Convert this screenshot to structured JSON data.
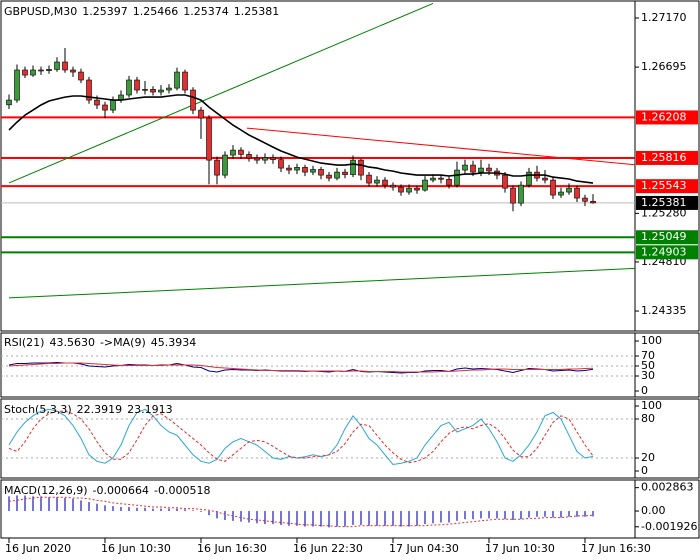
{
  "chart_data": [
    {
      "type": "candlestick",
      "title": "GBPUSD,M30",
      "categories": [
        "16 Jun 2020",
        null,
        null,
        null,
        null,
        null,
        null,
        null,
        null,
        null,
        null,
        null,
        "16 Jun 10:30",
        null,
        null,
        null,
        null,
        null,
        null,
        null,
        null,
        null,
        null,
        null,
        "16 Jun 16:30",
        null,
        null,
        null,
        null,
        null,
        null,
        null,
        null,
        null,
        null,
        null,
        "16 Jun 22:30",
        null,
        null,
        null,
        null,
        null,
        null,
        null,
        null,
        null,
        null,
        null,
        "17 Jun 04:30",
        null,
        null,
        null,
        null,
        null,
        null,
        null,
        null,
        null,
        null,
        null,
        "17 Jun 10:30",
        null,
        null,
        null,
        null,
        null,
        null,
        null,
        null,
        null,
        null,
        null,
        "17 Jun 16:30",
        null
      ],
      "open": [
        1.2633,
        1.26376,
        1.26667,
        1.26618,
        1.26667,
        1.2666,
        1.26672,
        1.26744,
        1.26667,
        1.26647,
        1.2657,
        1.26376,
        1.26328,
        1.26279,
        1.26376,
        1.26425,
        1.2657,
        1.26473,
        1.2648,
        1.26454,
        1.26473,
        1.26492,
        1.26647,
        1.26473,
        1.26279,
        1.26202,
        1.25795,
        1.2565,
        1.25844,
        1.25892,
        1.2585,
        1.25815,
        1.25795,
        1.2582,
        1.258,
        1.25718,
        1.25699,
        1.25725,
        1.25679,
        1.25705,
        1.2565,
        1.25621,
        1.25679,
        1.25655,
        1.25795,
        1.2565,
        1.25573,
        1.25602,
        1.25553,
        1.25534,
        1.25486,
        1.25524,
        1.25505,
        1.25602,
        1.25621,
        1.2561,
        1.25553,
        1.25699,
        1.25747,
        1.25679,
        1.25718,
        1.2569,
        1.2565,
        1.25524,
        1.25379,
        1.25553,
        1.25679,
        1.25621,
        1.25602,
        1.25457,
        1.25486,
        1.25524,
        1.25428,
        1.25397
      ],
      "high": [
        1.2643,
        1.2672,
        1.267,
        1.2671,
        1.267,
        1.2671,
        1.2679,
        1.2688,
        1.267,
        1.2668,
        1.266,
        1.2642,
        1.2636,
        1.2641,
        1.2647,
        1.2661,
        1.266,
        1.2656,
        1.2651,
        1.2652,
        1.2653,
        1.2669,
        1.2667,
        1.265,
        1.2631,
        1.2623,
        1.2583,
        1.2588,
        1.2594,
        1.2592,
        1.2588,
        1.2585,
        1.2586,
        1.2585,
        1.2583,
        1.2575,
        1.2576,
        1.2575,
        1.2574,
        1.2573,
        1.2568,
        1.2572,
        1.2571,
        1.2584,
        1.2581,
        1.2568,
        1.2564,
        1.2563,
        1.2558,
        1.2556,
        1.2556,
        1.2555,
        1.2564,
        1.2566,
        1.2565,
        1.2564,
        1.2578,
        1.258,
        1.2579,
        1.258,
        1.2576,
        1.2572,
        1.2568,
        1.2555,
        1.2559,
        1.2572,
        1.2574,
        1.257,
        1.2563,
        1.2553,
        1.2557,
        1.2555,
        1.2546,
        1.25466
      ],
      "low": [
        1.2629,
        1.2635,
        1.2659,
        1.266,
        1.2662,
        1.2663,
        1.2665,
        1.2664,
        1.266,
        1.2654,
        1.2634,
        1.2629,
        1.262,
        1.2625,
        1.2635,
        1.264,
        1.2644,
        1.2643,
        1.2642,
        1.2642,
        1.2644,
        1.2647,
        1.2644,
        1.2624,
        1.26,
        1.2556,
        1.2556,
        1.2562,
        1.2581,
        1.2581,
        1.2578,
        1.2576,
        1.2576,
        1.2576,
        1.2568,
        1.2566,
        1.2566,
        1.2564,
        1.2565,
        1.2561,
        1.2559,
        1.256,
        1.2562,
        1.2563,
        1.256,
        1.2554,
        1.2554,
        1.2552,
        1.255,
        1.2545,
        1.2546,
        1.2547,
        1.2549,
        1.2558,
        1.2557,
        1.2552,
        1.2553,
        1.2566,
        1.2564,
        1.2564,
        1.2565,
        1.2561,
        1.2548,
        1.253,
        1.2535,
        1.2553,
        1.2559,
        1.2557,
        1.2542,
        1.2543,
        1.2546,
        1.2539,
        1.2535,
        1.25374
      ],
      "close": [
        1.26376,
        1.26667,
        1.26618,
        1.26667,
        1.2666,
        1.26672,
        1.26744,
        1.26667,
        1.26647,
        1.2657,
        1.26376,
        1.26328,
        1.26279,
        1.26376,
        1.26425,
        1.2657,
        1.26473,
        1.2648,
        1.26454,
        1.26473,
        1.26492,
        1.26647,
        1.26473,
        1.26279,
        1.26202,
        1.25795,
        1.2565,
        1.25844,
        1.25892,
        1.2585,
        1.25815,
        1.25795,
        1.2582,
        1.258,
        1.25718,
        1.25699,
        1.25725,
        1.25679,
        1.25705,
        1.2565,
        1.25621,
        1.25679,
        1.25655,
        1.25795,
        1.2565,
        1.25573,
        1.25602,
        1.25553,
        1.25534,
        1.25486,
        1.25524,
        1.25505,
        1.25602,
        1.25621,
        1.2561,
        1.25553,
        1.25699,
        1.25747,
        1.25679,
        1.25718,
        1.2569,
        1.2565,
        1.25524,
        1.25379,
        1.25553,
        1.25679,
        1.25621,
        1.25602,
        1.25457,
        1.25486,
        1.25524,
        1.25428,
        1.25397,
        1.25381
      ],
      "up_color": "#3c9a3c",
      "down_color": "#e03030",
      "ma": {
        "color": "#000000",
        "values": [
          1.26086,
          1.26163,
          1.26231,
          1.26279,
          1.26328,
          1.26367,
          1.26386,
          1.26405,
          1.26415,
          1.26415,
          1.26405,
          1.26396,
          1.26386,
          1.26376,
          1.26376,
          1.26386,
          1.26396,
          1.26405,
          1.26405,
          1.26405,
          1.26415,
          1.26425,
          1.26425,
          1.26405,
          1.26376,
          1.26308,
          1.2625,
          1.26192,
          1.26134,
          1.26086,
          1.26037,
          1.25999,
          1.2596,
          1.25921,
          1.25883,
          1.25854,
          1.25824,
          1.25805,
          1.25786,
          1.25766,
          1.25757,
          1.25747,
          1.25747,
          1.25757,
          1.25747,
          1.25728,
          1.25718,
          1.25699,
          1.25689,
          1.2567,
          1.2566,
          1.2565,
          1.2565,
          1.2565,
          1.2565,
          1.25641,
          1.2565,
          1.2566,
          1.2566,
          1.2567,
          1.2567,
          1.2567,
          1.2566,
          1.25641,
          1.25641,
          1.2565,
          1.2565,
          1.2565,
          1.25631,
          1.25621,
          1.25612,
          1.25592,
          1.25582,
          1.25573
        ]
      },
      "levels": [
        {
          "value": 1.26208,
          "color": "#ff0000"
        },
        {
          "value": 1.25816,
          "color": "#ff0000"
        },
        {
          "value": 1.25543,
          "color": "#ff0000"
        },
        {
          "value": 1.25049,
          "color": "#008000"
        },
        {
          "value": 1.24903,
          "color": "#008000"
        }
      ],
      "trendlines": [
        {
          "x": [
            0,
            53
          ],
          "y": [
            1.25574,
            1.27311
          ],
          "color": "#008000"
        },
        {
          "x": [
            0,
            79
          ],
          "y": [
            1.24462,
            1.2475
          ],
          "color": "#008000"
        },
        {
          "x": [
            29.75,
            78.75
          ],
          "y": [
            1.26105,
            1.25747
          ],
          "color": "#ff0000"
        }
      ],
      "ylim": [
        1.24171,
        1.27315
      ],
      "yticks": [
        {
          "value": 1.2717,
          "label": "1.27170"
        },
        {
          "value": 1.26695,
          "label": "1.26695"
        },
        {
          "value": 1.2528,
          "label": "1.25280"
        },
        {
          "value": 1.2481,
          "label": "1.24810"
        },
        {
          "value": 1.24335,
          "label": "1.24335"
        }
      ]
    },
    {
      "type": "line",
      "title": "RSI(21)",
      "ylim": [
        0,
        100
      ],
      "yticks": [
        0,
        30,
        50,
        70,
        100
      ],
      "grid": true,
      "series": [
        {
          "color": "#00008b",
          "style": "solid",
          "values": [
            52,
            55,
            55,
            56,
            56,
            56,
            57,
            56,
            56,
            54,
            50,
            49,
            48,
            50,
            51,
            53,
            52,
            52,
            51,
            52,
            52,
            55,
            52,
            48,
            47,
            40,
            38,
            42,
            43,
            42,
            42,
            41,
            42,
            41,
            40,
            40,
            40,
            39,
            40,
            39,
            38,
            40,
            39,
            43,
            39,
            38,
            39,
            38,
            37,
            36,
            37,
            37,
            40,
            41,
            41,
            39,
            44,
            46,
            44,
            45,
            44,
            43,
            40,
            37,
            41,
            45,
            44,
            43,
            40,
            41,
            42,
            40,
            41,
            43.563
          ],
          "value_labels": [
            null,
            null,
            null,
            null,
            null,
            null,
            null,
            null,
            null,
            null,
            null,
            null,
            null,
            null,
            null,
            null,
            null,
            null,
            null,
            null,
            null,
            null,
            null,
            null,
            null,
            null,
            null,
            null,
            null,
            null,
            null,
            null,
            null,
            null,
            null,
            null,
            null,
            null,
            null,
            null,
            null,
            null,
            null,
            null,
            null,
            null,
            null,
            null,
            null,
            null,
            null,
            null,
            null,
            null,
            null,
            null,
            null,
            null,
            null,
            null,
            null,
            null,
            null,
            null,
            null,
            null,
            null,
            null,
            null,
            null,
            null,
            null,
            null,
            "43.5630"
          ]
        },
        {
          "name": "->MA(9)",
          "color": "#e03030",
          "style": "solid",
          "values": [
            50,
            51,
            52,
            53,
            54,
            55,
            55,
            56,
            56,
            56,
            55,
            54,
            53,
            52,
            51,
            51,
            51,
            51,
            51,
            51,
            52,
            52,
            52,
            52,
            51,
            49,
            47,
            46,
            45,
            44,
            43,
            42,
            41,
            41,
            41,
            41,
            41,
            40,
            40,
            40,
            40,
            40,
            39,
            40,
            40,
            39,
            39,
            39,
            39,
            38,
            38,
            38,
            38,
            38,
            39,
            39,
            40,
            41,
            42,
            42,
            43,
            44,
            44,
            43,
            43,
            43,
            43,
            43,
            43,
            43,
            44,
            44,
            45,
            45.3934
          ]
        }
      ]
    },
    {
      "type": "line",
      "title": "Stoch(5,3,3)",
      "ylim": [
        0,
        100
      ],
      "yticks": [
        0,
        20,
        80,
        100
      ],
      "grid": true,
      "series": [
        {
          "color": "#2aa7d8",
          "style": "solid",
          "values": [
            40,
            60,
            75,
            85,
            92,
            95,
            92,
            85,
            70,
            50,
            25,
            15,
            12,
            20,
            40,
            70,
            90,
            95,
            85,
            70,
            60,
            55,
            40,
            25,
            15,
            12,
            18,
            35,
            45,
            50,
            45,
            40,
            30,
            20,
            18,
            22,
            20,
            22,
            25,
            22,
            25,
            40,
            65,
            85,
            70,
            50,
            40,
            25,
            10,
            12,
            15,
            20,
            40,
            55,
            70,
            75,
            60,
            65,
            70,
            80,
            65,
            45,
            20,
            15,
            25,
            40,
            60,
            85,
            90,
            80,
            55,
            30,
            20,
            22.3919
          ]
        },
        {
          "color": "#e03030",
          "style": "dashed",
          "values": [
            35,
            30,
            45,
            65,
            80,
            88,
            92,
            92,
            88,
            80,
            65,
            45,
            28,
            18,
            18,
            28,
            48,
            70,
            85,
            88,
            80,
            70,
            60,
            50,
            40,
            28,
            18,
            15,
            25,
            35,
            45,
            47,
            45,
            38,
            30,
            23,
            20,
            20,
            22,
            23,
            25,
            30,
            42,
            60,
            72,
            70,
            55,
            40,
            28,
            18,
            13,
            15,
            20,
            30,
            45,
            58,
            65,
            68,
            65,
            70,
            73,
            65,
            50,
            32,
            22,
            22,
            35,
            55,
            75,
            85,
            80,
            60,
            40,
            23.1913
          ]
        }
      ]
    },
    {
      "type": "bar_line",
      "title": "MACD(12,26,9)",
      "ylim": [
        -0.0033,
        0.0038
      ],
      "yticks": [
        -0.001926,
        {
          "value": 0,
          "label": "0.00"
        },
        0.002863
      ],
      "series": [
        {
          "color": "#1a1aa6",
          "style": "bar",
          "values": [
            0.0018,
            0.0019,
            0.0019,
            0.0018,
            0.0018,
            0.0017,
            0.0017,
            0.0016,
            0.0015,
            0.0013,
            0.0011,
            0.0009,
            0.0007,
            0.0006,
            0.0005,
            0.0005,
            0.0004,
            0.0004,
            0.0003,
            0.0003,
            0.0003,
            0.0003,
            0.0002,
            0.0001,
            -0.0001,
            -0.0005,
            -0.0009,
            -0.0011,
            -0.0012,
            -0.0013,
            -0.0014,
            -0.0015,
            -0.0016,
            -0.0016,
            -0.0017,
            -0.0018,
            -0.0018,
            -0.0019,
            -0.0019,
            -0.0019,
            -0.002,
            -0.0019,
            -0.0019,
            -0.0017,
            -0.0017,
            -0.0018,
            -0.0018,
            -0.0018,
            -0.0018,
            -0.0019,
            -0.0019,
            -0.0018,
            -0.0016,
            -0.0015,
            -0.0014,
            -0.0014,
            -0.0012,
            -0.001,
            -0.001,
            -0.0009,
            -0.0009,
            -0.0009,
            -0.001,
            -0.0011,
            -0.001,
            -0.0008,
            -0.0007,
            -0.0007,
            -0.0008,
            -0.0008,
            -0.0007,
            -0.0007,
            -0.0007,
            -0.000664
          ]
        },
        {
          "color": "#e03030",
          "style": "dashed",
          "values": [
            0.0012,
            0.0013,
            0.0015,
            0.0016,
            0.0017,
            0.0017,
            0.0017,
            0.0017,
            0.0016,
            0.0016,
            0.0015,
            0.0013,
            0.0012,
            0.001,
            0.0009,
            0.0008,
            0.0007,
            0.0006,
            0.0005,
            0.0005,
            0.0004,
            0.0004,
            0.0003,
            0.0003,
            0.0002,
            0.0001,
            -0.0001,
            -0.0004,
            -0.0006,
            -0.0008,
            -0.001,
            -0.0011,
            -0.0012,
            -0.0013,
            -0.0014,
            -0.0015,
            -0.0016,
            -0.0017,
            -0.0017,
            -0.0018,
            -0.0018,
            -0.0019,
            -0.0019,
            -0.0019,
            -0.0018,
            -0.0018,
            -0.0018,
            -0.0018,
            -0.0018,
            -0.0018,
            -0.0018,
            -0.0018,
            -0.0018,
            -0.0017,
            -0.0017,
            -0.0016,
            -0.0015,
            -0.0014,
            -0.0013,
            -0.0012,
            -0.0011,
            -0.001,
            -0.001,
            -0.001,
            -0.001,
            -0.0009,
            -0.0009,
            -0.0008,
            -0.0008,
            -0.0008,
            -0.0007,
            -0.0006,
            -0.0006,
            -0.000518
          ]
        }
      ]
    }
  ]
}
